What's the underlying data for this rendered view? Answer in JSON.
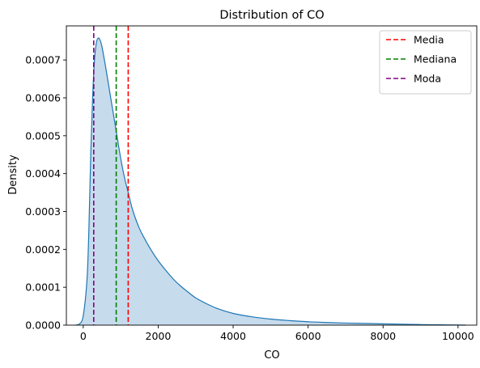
{
  "chart_data": {
    "type": "area",
    "title": "Distribution of CO",
    "xlabel": "CO",
    "ylabel": "Density",
    "xlim": [
      -450,
      10500
    ],
    "ylim": [
      0,
      0.00079
    ],
    "xticks": [
      0,
      2000,
      4000,
      6000,
      8000,
      10000
    ],
    "xtick_labels": [
      "0",
      "2000",
      "4000",
      "6000",
      "8000",
      "10000"
    ],
    "yticks": [
      0,
      0.0001,
      0.0002,
      0.0003,
      0.0004,
      0.0005,
      0.0006,
      0.0007
    ],
    "ytick_labels": [
      "0.0000",
      "0.0001",
      "0.0002",
      "0.0003",
      "0.0004",
      "0.0005",
      "0.0006",
      "0.0007"
    ],
    "grid": false,
    "legend_position": "top-right",
    "density_series": {
      "color": "#1f77b4",
      "fill_color": "#c6dbec",
      "x": [
        -200,
        -100,
        0,
        100,
        150,
        200,
        250,
        300,
        350,
        400,
        450,
        500,
        600,
        700,
        800,
        900,
        1000,
        1100,
        1200,
        1300,
        1400,
        1500,
        1600,
        1800,
        2000,
        2200,
        2400,
        2600,
        2800,
        3000,
        3300,
        3600,
        4000,
        4500,
        5000,
        5500,
        6000,
        6500,
        7000,
        7500,
        8000,
        8500,
        9000,
        9500,
        10000,
        10200
      ],
      "y": [
        0,
        3e-06,
        2.5e-05,
        0.00012,
        0.00025,
        0.00045,
        0.0006,
        0.0007,
        0.000745,
        0.000758,
        0.000752,
        0.000735,
        0.00068,
        0.00062,
        0.00056,
        0.0005,
        0.00044,
        0.00039,
        0.00035,
        0.00031,
        0.00028,
        0.000255,
        0.000235,
        0.0002,
        0.00017,
        0.000145,
        0.000122,
        0.000103,
        8.7e-05,
        7.2e-05,
        5.6e-05,
        4.3e-05,
        3.1e-05,
        2.2e-05,
        1.6e-05,
        1.2e-05,
        9e-06,
        7e-06,
        5.5e-06,
        4.5e-06,
        3.5e-06,
        2.5e-06,
        1.5e-06,
        8e-07,
        3e-07,
        0
      ]
    },
    "reference_lines": [
      {
        "name": "Media",
        "x": 1200,
        "color": "#ff0000"
      },
      {
        "name": "Mediana",
        "x": 880,
        "color": "#008000"
      },
      {
        "name": "Moda",
        "x": 280,
        "color": "#800080"
      }
    ]
  }
}
